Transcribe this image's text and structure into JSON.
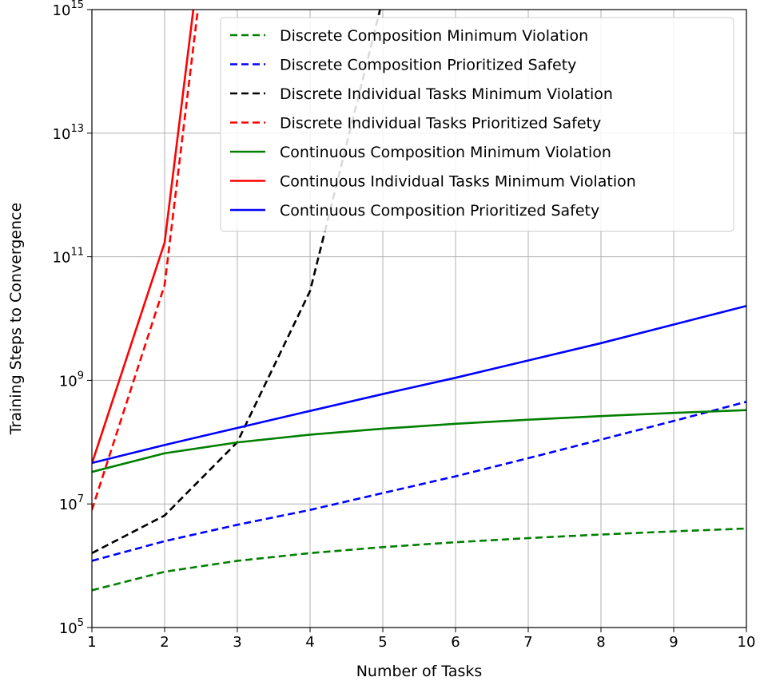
{
  "chart_data": {
    "type": "line",
    "title": "",
    "xlabel": "Number of Tasks",
    "ylabel": "Training Steps to Convergence",
    "yscale": "log",
    "xlim": [
      1,
      10
    ],
    "ylim": [
      100000,
      1000000000000000
    ],
    "grid": true,
    "legend_placement": "top-right",
    "x_ticks": [
      1,
      2,
      3,
      4,
      5,
      6,
      7,
      8,
      9,
      10
    ],
    "x_tick_labels": [
      "1",
      "2",
      "3",
      "4",
      "5",
      "6",
      "7",
      "8",
      "9",
      "10"
    ],
    "y_ticks": [
      100000,
      10000000,
      1000000000,
      100000000000,
      10000000000000,
      1000000000000000
    ],
    "y_tick_labels": [
      {
        "base": "10",
        "exp": "5"
      },
      {
        "base": "10",
        "exp": "7"
      },
      {
        "base": "10",
        "exp": "9"
      },
      {
        "base": "10",
        "exp": "11"
      },
      {
        "base": "10",
        "exp": "13"
      },
      {
        "base": "10",
        "exp": "15"
      }
    ],
    "series": [
      {
        "name": "Discrete Composition Minimum Violation",
        "color": "#008000",
        "style": "dashed",
        "x": [
          1,
          2,
          3,
          4,
          5,
          6,
          7,
          8,
          9,
          10
        ],
        "y": [
          400000,
          800000,
          1200000,
          1600000,
          2000000,
          2400000,
          2800000,
          3200000,
          3600000,
          4000000
        ]
      },
      {
        "name": "Discrete Composition Prioritized Safety",
        "color": "#0000ff",
        "style": "dashed",
        "x": [
          1,
          2,
          3,
          4,
          5,
          6,
          7,
          8,
          9,
          10
        ],
        "y": [
          1200000,
          2500000,
          4600000,
          8000000,
          15000000,
          28000000,
          55000000,
          110000000,
          220000000,
          450000000
        ]
      },
      {
        "name": "Discrete Individual Tasks Minimum Violation",
        "color": "#000000",
        "style": "dashed",
        "x": [
          1,
          2,
          3,
          4,
          5
        ],
        "y": [
          1600000,
          6500000,
          100000000,
          28000000000,
          1500000000000000
        ]
      },
      {
        "name": "Discrete Individual Tasks Prioritized Safety",
        "color": "#ff0000",
        "style": "dashed",
        "x": [
          1,
          2,
          3
        ],
        "y": [
          8000000,
          35000000000,
          200000000000000000000
        ]
      },
      {
        "name": "Continuous Composition Minimum Violation",
        "color": "#008000",
        "style": "solid",
        "x": [
          1,
          2,
          3,
          4,
          5,
          6,
          7,
          8,
          9,
          10
        ],
        "y": [
          33000000,
          66000000,
          99000000,
          132000000,
          165000000,
          198000000,
          231000000,
          264000000,
          297000000,
          330000000
        ]
      },
      {
        "name": "Continuous Individual Tasks Minimum Violation",
        "color": "#ff0000",
        "style": "solid",
        "x": [
          1,
          2,
          3
        ],
        "y": [
          45000000,
          170000000000,
          600000000000000000000
        ]
      },
      {
        "name": "Continuous Composition Prioritized Safety",
        "color": "#0000ff",
        "style": "solid",
        "x": [
          1,
          2,
          3,
          4,
          5,
          6,
          7,
          8,
          9,
          10
        ],
        "y": [
          46000000,
          90000000,
          170000000,
          320000000,
          600000000,
          1100000000,
          2100000000,
          4000000000,
          8000000000,
          16000000000
        ]
      }
    ]
  }
}
